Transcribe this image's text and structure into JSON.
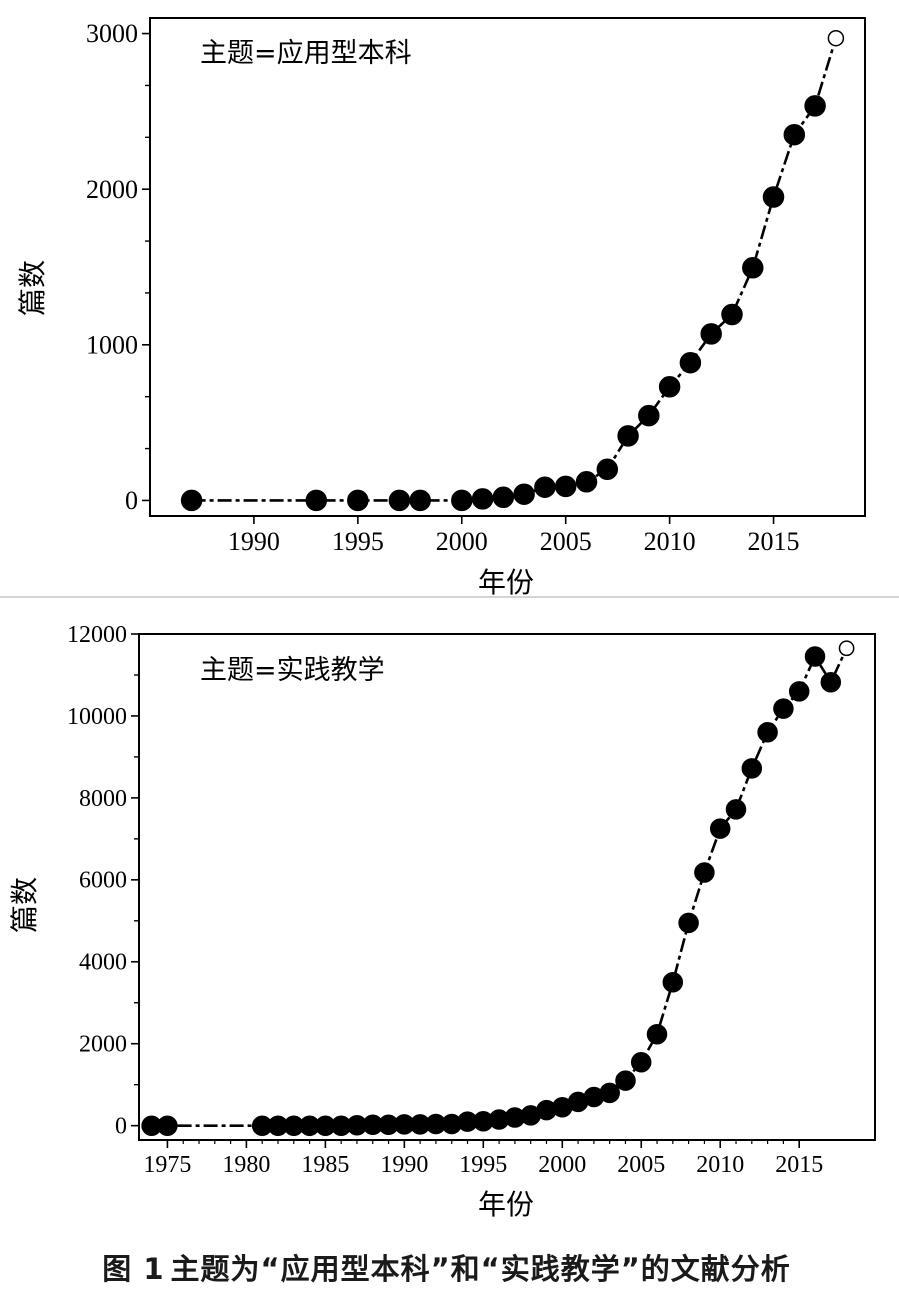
{
  "figure": {
    "caption_label": "图 1",
    "caption_text": "主题为“应用型本科”和“实践教学”的文献分析"
  },
  "chart_data": [
    {
      "type": "line",
      "title": "主题=应用型本科",
      "xlabel": "年份",
      "ylabel": "篇数",
      "xlim": [
        1985,
        2019.4
      ],
      "ylim": [
        -100,
        3100
      ],
      "xticks": [
        1990,
        1995,
        2000,
        2005,
        2010,
        2015
      ],
      "yticks": [
        0,
        1000,
        2000,
        3000
      ],
      "grid": false,
      "series": [
        {
          "x": [
            1987,
            1993,
            1995,
            1997,
            1998,
            2000,
            2001,
            2002,
            2003,
            2004,
            2005,
            2006,
            2007,
            2008,
            2009,
            2010,
            2011,
            2012,
            2013,
            2014,
            2015,
            2016,
            2017,
            2018
          ],
          "y": [
            0,
            0,
            0,
            0,
            0,
            0,
            10,
            20,
            40,
            85,
            90,
            120,
            200,
            415,
            545,
            730,
            885,
            1070,
            1195,
            1495,
            1950,
            2350,
            2535,
            2970
          ],
          "open_markers_x": [
            2018
          ]
        }
      ]
    },
    {
      "type": "line",
      "title": "主题=实践教学",
      "xlabel": "年份",
      "ylabel": "篇数",
      "xlim": [
        1973.2,
        2019.8
      ],
      "ylim": [
        -350,
        12000
      ],
      "xticks": [
        1975,
        1980,
        1985,
        1990,
        1995,
        2000,
        2005,
        2010,
        2015
      ],
      "yticks": [
        0,
        2000,
        4000,
        6000,
        8000,
        10000,
        12000
      ],
      "grid": false,
      "series": [
        {
          "x": [
            1974,
            1975,
            1981,
            1982,
            1983,
            1984,
            1985,
            1986,
            1987,
            1988,
            1989,
            1990,
            1991,
            1992,
            1993,
            1994,
            1995,
            1996,
            1997,
            1998,
            1999,
            2000,
            2001,
            2002,
            2003,
            2004,
            2005,
            2006,
            2007,
            2008,
            2009,
            2010,
            2011,
            2012,
            2013,
            2014,
            2015,
            2016,
            2017,
            2018
          ],
          "y": [
            0,
            0,
            0,
            0,
            0,
            0,
            0,
            0,
            10,
            20,
            20,
            30,
            30,
            40,
            40,
            100,
            110,
            150,
            200,
            250,
            380,
            450,
            580,
            700,
            800,
            1100,
            1550,
            2230,
            3500,
            4950,
            6180,
            7250,
            7720,
            8720,
            9600,
            10180,
            10600,
            11450,
            10820,
            11650
          ],
          "open_markers_x": [
            2018
          ]
        }
      ]
    }
  ]
}
